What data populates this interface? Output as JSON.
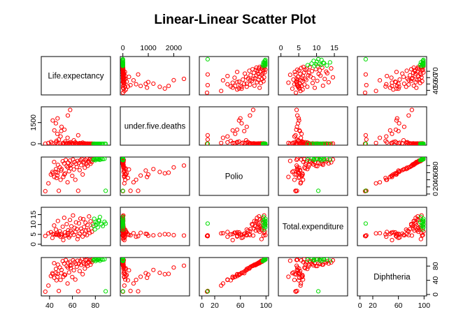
{
  "chart_data": {
    "type": "scatter",
    "title": "Linear-Linear Scatter Plot",
    "layout": "pairs-matrix",
    "variables": [
      {
        "name": "Life.expectancy",
        "range": [
          35,
          91
        ],
        "ticks": [
          40,
          60,
          80
        ]
      },
      {
        "name": "under.five.deaths",
        "range": [
          0,
          2520
        ],
        "ticks": [
          0,
          1000,
          2000
        ],
        "tick_labels": [
          "0",
          "1000",
          "2000"
        ],
        "y_ticks": [
          0,
          1500
        ],
        "y_tick_labels": [
          "0",
          "1500"
        ]
      },
      {
        "name": "Polio",
        "range": [
          0,
          100
        ],
        "ticks": [
          0,
          20,
          40,
          60,
          80,
          100
        ],
        "tick_labels": [
          "0",
          "20",
          "40",
          "60",
          "80",
          "100"
        ],
        "y_ticks": [
          0,
          20,
          40,
          60,
          80
        ]
      },
      {
        "name": "Total.expenditure",
        "range": [
          0,
          18
        ],
        "ticks": [
          0,
          5,
          10,
          15
        ]
      },
      {
        "name": "Diphtheria",
        "range": [
          0,
          100
        ],
        "ticks": [
          0,
          20,
          60,
          100
        ],
        "tick_labels": [
          "0",
          "20",
          "60",
          "100"
        ],
        "y_ticks": [
          0,
          40,
          80
        ]
      }
    ],
    "axes": {
      "bottom": [
        {
          "var": 0,
          "ticks": [
            40,
            60,
            80
          ]
        },
        {
          "var": 2,
          "ticks": [
            0,
            20,
            60,
            100
          ]
        },
        {
          "var": 4,
          "ticks": [
            0,
            20,
            60,
            100
          ]
        }
      ],
      "top": [
        {
          "var": 1,
          "ticks": [
            0,
            1000,
            2000
          ]
        },
        {
          "var": 3,
          "ticks": [
            0,
            5,
            10,
            15
          ]
        }
      ],
      "left": [
        {
          "var": 1,
          "ticks": [
            0,
            1500
          ]
        },
        {
          "var": 3,
          "ticks": [
            0,
            5,
            10,
            15
          ]
        }
      ],
      "right": [
        {
          "var": 0,
          "ticks": [
            40,
            50,
            60,
            70
          ]
        },
        {
          "var": 2,
          "ticks": [
            0,
            20,
            40,
            60,
            80
          ]
        },
        {
          "var": 4,
          "ticks": [
            0,
            40,
            80
          ]
        }
      ]
    },
    "series": [
      {
        "color": "#ff0000",
        "description_group": "red points (majority)"
      },
      {
        "color": "#00dd00",
        "description_group": "green points (high life expectancy)"
      }
    ],
    "points_le_u5d_polio_te_diph": [
      [
        36.3,
        5,
        8,
        4.2,
        8
      ],
      [
        39,
        60,
        30,
        5.5,
        25
      ],
      [
        41.2,
        120,
        55,
        6.1,
        52
      ],
      [
        42.5,
        30,
        62,
        3.2,
        60
      ],
      [
        44,
        10,
        90,
        9.5,
        88
      ],
      [
        45.6,
        85,
        70,
        7.4,
        72
      ],
      [
        46.1,
        200,
        45,
        5.0,
        40
      ],
      [
        47.3,
        15,
        82,
        11.8,
        84
      ],
      [
        48.1,
        300,
        9,
        4.5,
        10
      ],
      [
        49,
        40,
        75,
        6.6,
        76
      ],
      [
        50.2,
        900,
        66,
        5.3,
        60
      ],
      [
        51.5,
        25,
        92,
        8.9,
        94
      ],
      [
        52,
        60,
        48,
        2.1,
        50
      ],
      [
        52.8,
        5,
        86,
        13.4,
        87
      ],
      [
        53.6,
        150,
        58,
        6.0,
        55
      ],
      [
        54.2,
        35,
        96,
        4.4,
        97
      ],
      [
        55,
        12,
        78,
        10.2,
        80
      ],
      [
        55.7,
        420,
        33,
        5.6,
        31
      ],
      [
        56.3,
        20,
        88,
        7.1,
        89
      ],
      [
        57,
        70,
        64,
        3.5,
        62
      ],
      [
        57.8,
        8,
        94,
        12.3,
        92
      ],
      [
        58.4,
        110,
        72,
        6.8,
        74
      ],
      [
        59,
        3,
        83,
        9.1,
        82
      ],
      [
        59.8,
        50,
        51,
        5.9,
        49
      ],
      [
        60.5,
        18,
        97,
        14.6,
        96
      ],
      [
        61.2,
        240,
        69,
        4.8,
        68
      ],
      [
        61.9,
        9,
        90,
        8.3,
        91
      ],
      [
        62.5,
        95,
        40,
        6.2,
        42
      ],
      [
        63.1,
        2,
        85,
        11.1,
        86
      ],
      [
        63.8,
        33,
        76,
        7.7,
        78
      ],
      [
        64.4,
        14,
        93,
        2.6,
        95
      ],
      [
        65,
        600,
        9,
        4.1,
        9
      ],
      [
        65.7,
        6,
        88,
        10.6,
        87
      ],
      [
        66.3,
        45,
        67,
        5.4,
        66
      ],
      [
        67,
        1,
        95,
        13.0,
        94
      ],
      [
        67.6,
        28,
        81,
        7.9,
        83
      ],
      [
        68.2,
        4,
        98,
        6.5,
        99
      ],
      [
        68.9,
        80,
        55,
        3.9,
        57
      ],
      [
        69.5,
        11,
        91,
        12.7,
        90
      ],
      [
        70.1,
        2,
        87,
        8.7,
        86
      ],
      [
        70.8,
        22,
        74,
        5.1,
        73
      ],
      [
        71.4,
        0,
        96,
        10.9,
        97
      ],
      [
        72,
        7,
        84,
        6.9,
        85
      ],
      [
        72.6,
        1,
        99,
        4.6,
        98
      ],
      [
        73.2,
        15,
        79,
        9.8,
        80
      ],
      [
        73.9,
        0,
        93,
        7.3,
        92
      ],
      [
        74.5,
        3,
        89,
        14.1,
        90
      ],
      [
        75.1,
        9,
        97,
        5.7,
        96
      ],
      [
        75.8,
        0,
        85,
        11.6,
        84
      ],
      [
        76.4,
        2,
        94,
        8.1,
        95
      ],
      [
        77,
        1,
        90,
        6.3,
        91
      ],
      [
        77.7,
        4,
        98,
        10.3,
        99
      ],
      [
        78.3,
        0,
        96,
        9.4,
        96
      ],
      [
        79,
        1,
        99,
        12.9,
        99
      ],
      [
        79.6,
        0,
        97,
        7.5,
        98
      ],
      [
        80.2,
        0,
        95,
        11.3,
        94
      ],
      [
        80.9,
        0,
        99,
        9.9,
        99
      ],
      [
        81.5,
        0,
        98,
        10.8,
        97
      ],
      [
        82.1,
        0,
        99,
        8.6,
        99
      ],
      [
        82.8,
        0,
        97,
        12.1,
        98
      ],
      [
        83.4,
        0,
        99,
        11.9,
        99
      ],
      [
        84,
        0,
        96,
        13.8,
        95
      ],
      [
        85.2,
        0,
        99,
        10.1,
        99
      ],
      [
        86.5,
        0,
        98,
        9.2,
        98
      ],
      [
        88,
        0,
        99,
        11.4,
        99
      ],
      [
        89,
        0,
        9,
        10.5,
        9
      ],
      [
        47,
        1800,
        60,
        5.0,
        58
      ],
      [
        45.5,
        1450,
        62,
        4.8,
        61
      ],
      [
        50.5,
        1200,
        70,
        4.5,
        69
      ],
      [
        53,
        1000,
        55,
        4.3,
        56
      ],
      [
        56,
        2000,
        75,
        4.6,
        76
      ],
      [
        58,
        2400,
        80,
        4.4,
        81
      ],
      [
        44.2,
        950,
        48,
        5.2,
        47
      ],
      [
        46.8,
        700,
        52,
        5.8,
        50
      ],
      [
        49.6,
        520,
        40,
        3.8,
        41
      ],
      [
        42.8,
        1650,
        58,
        5.1,
        57
      ]
    ]
  }
}
